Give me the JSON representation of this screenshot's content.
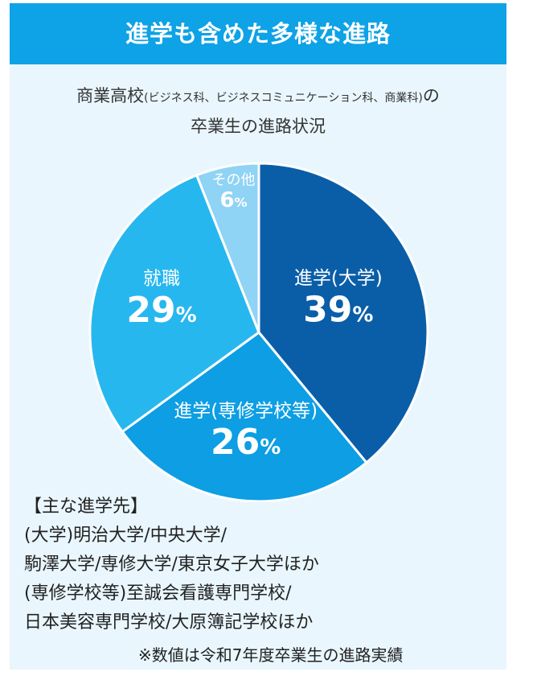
{
  "header": {
    "title": "進学も含めた多様な進路"
  },
  "subtitle": {
    "line1_main": "商業高校",
    "line1_paren": "(ビジネス科、ビジネスコミュニケーション科、商業科)",
    "line1_tail": "の",
    "line2": "卒業生の進路状況"
  },
  "chart_data": {
    "type": "pie",
    "unit": "%",
    "slices": [
      {
        "label": "進学(大学)",
        "value": 39,
        "display": "39",
        "color": "#0a5ea8"
      },
      {
        "label": "進学(専修学校等)",
        "value": 26,
        "display": "26",
        "color": "#0d9ee3"
      },
      {
        "label": "就職",
        "value": 29,
        "display": "29",
        "color": "#27b7ef"
      },
      {
        "label": "その他",
        "value": 6,
        "display": "6",
        "color": "#8fd3f5"
      }
    ],
    "start": "12 o'clock, clockwise"
  },
  "destinations": {
    "heading": "【主な進学先】",
    "lines": [
      "(大学)明治大学/中央大学/",
      "駒澤大学/専修大学/東京女子大学ほか",
      "(専修学校等)至誠会看護専門学校/",
      "日本美容専門学校/大原簿記学校ほか"
    ]
  },
  "note": "※数値は令和7年度卒業生の進路実績"
}
